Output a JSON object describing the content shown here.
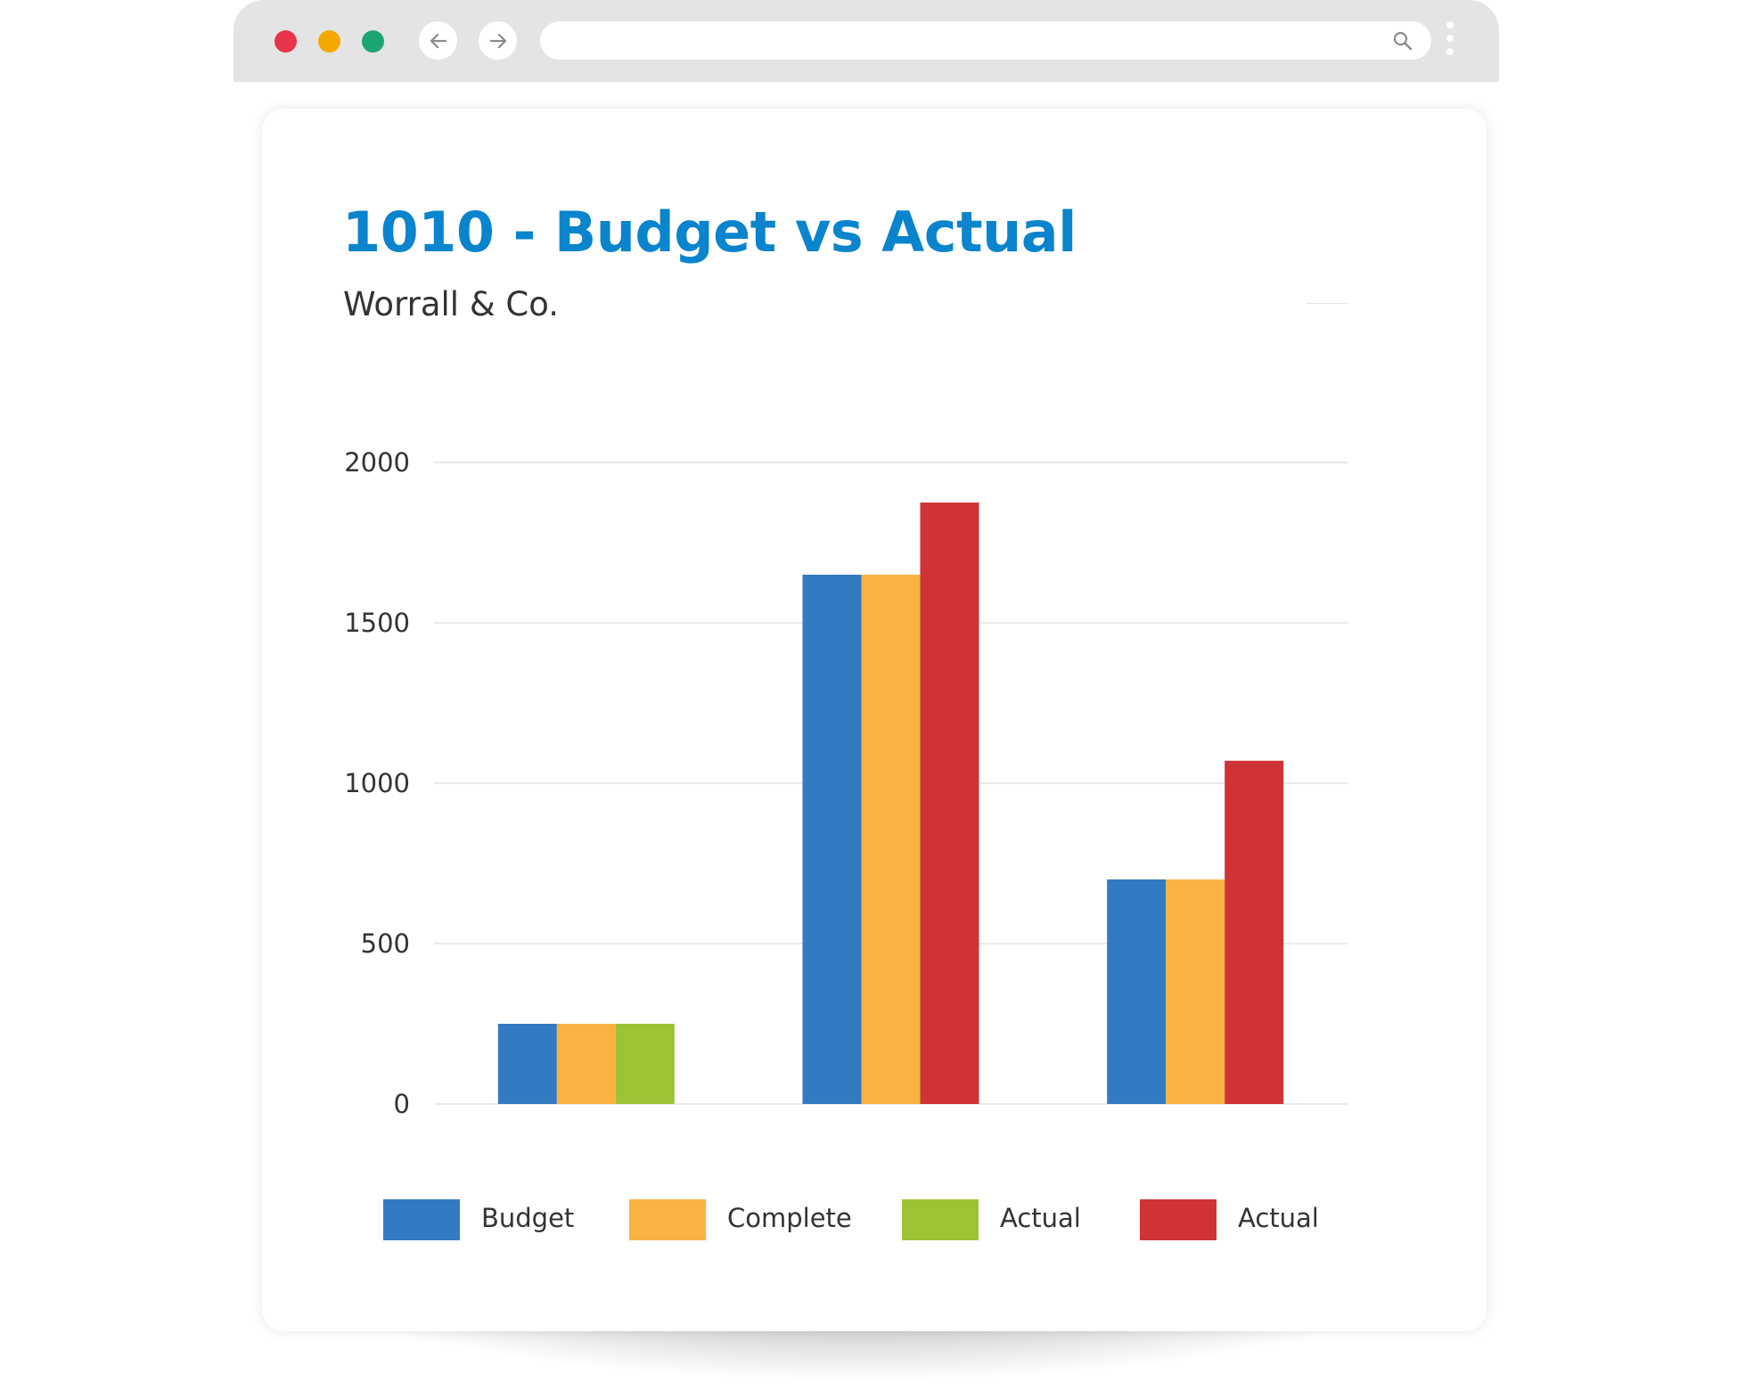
{
  "window": {
    "traffic_lights": {
      "close_color": "#e8344a",
      "minimize_color": "#f5a800",
      "maximize_color": "#1ea672"
    },
    "address_bar": {
      "value": ""
    },
    "icons": [
      "arrow-left-icon",
      "arrow-right-icon",
      "search-icon",
      "kebab-menu-icon"
    ]
  },
  "colors": {
    "title": "#0a84cc",
    "gridline": "#e3e3e3"
  },
  "chart_data": {
    "type": "bar",
    "title": "1010 - Budget vs Actual",
    "subtitle": "Worrall & Co.",
    "xlabel": "",
    "ylabel": "",
    "ylim": [
      0,
      2000
    ],
    "yticks": [
      0,
      500,
      1000,
      1500,
      2000
    ],
    "grid": true,
    "legend_position": "bottom",
    "categories": [
      "",
      "",
      ""
    ],
    "series": [
      {
        "name": "Budget",
        "color": "#327bc2",
        "values": [
          250,
          1650,
          700
        ]
      },
      {
        "name": "Complete",
        "color": "#fab242",
        "values": [
          250,
          1650,
          700
        ]
      },
      {
        "name": "Actual",
        "color": "#9bc334",
        "values": [
          250,
          null,
          null
        ]
      },
      {
        "name": "Actual",
        "color": "#d03336",
        "values": [
          null,
          1875,
          1070
        ]
      }
    ]
  }
}
